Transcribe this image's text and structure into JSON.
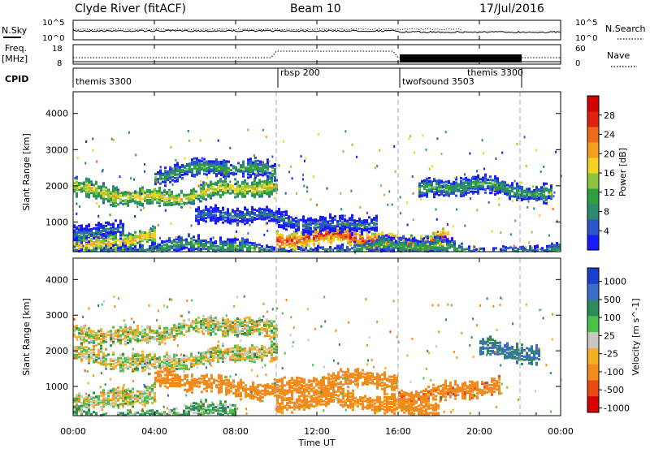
{
  "header": {
    "title": "Clyde River (fitACF)",
    "beam": "Beam 10",
    "date": "17/Jul/2016"
  },
  "nsky_panel": {
    "left_label": "N.Sky",
    "left_ticks": [
      "10^5",
      "10^0"
    ],
    "right_label": "N.Search",
    "right_ticks": [
      "10^5",
      "10^0"
    ]
  },
  "freq_panel": {
    "left_label_line1": "Freq.",
    "left_label_line2": "[MHz]",
    "left_ticks": [
      "18",
      "8"
    ],
    "right_label": "Nave",
    "right_ticks": [
      "60",
      "0"
    ]
  },
  "cpid_panel": {
    "label": "CPID",
    "segments": [
      {
        "name": "themis 3300",
        "start_hour": 0
      },
      {
        "name": "rbsp 200",
        "start_hour": 10
      },
      {
        "name": "twofsound 3503",
        "start_hour": 16
      },
      {
        "name": "themis 3300",
        "start_hour": 22
      }
    ]
  },
  "x_axis": {
    "label": "Time UT",
    "range_hours": [
      0,
      24
    ],
    "ticks": [
      "00:00",
      "04:00",
      "08:00",
      "12:00",
      "16:00",
      "20:00",
      "00:00"
    ]
  },
  "power_panel": {
    "ylabel": "Slant Range [km]",
    "yticks": [
      "1000",
      "2000",
      "3000",
      "4000"
    ],
    "colorbar_label": "Power [dB]",
    "colorbar_ticks": [
      "4",
      "8",
      "12",
      "16",
      "20",
      "24",
      "28"
    ],
    "colors": [
      "#1a1aff",
      "#2a55c8",
      "#2c8a6e",
      "#2ea043",
      "#8cc63f",
      "#f5d21f",
      "#f2a01e",
      "#ef6a1a",
      "#e02010",
      "#d50000"
    ]
  },
  "velocity_panel": {
    "ylabel": "Slant Range [km]",
    "yticks": [
      "1000",
      "2000",
      "3000",
      "4000"
    ],
    "colorbar_label": "Velocity [m s^-1]",
    "colorbar_ticks": [
      "1000",
      "500",
      "100",
      "25",
      "-25",
      "-100",
      "-500",
      "-1000"
    ],
    "colors": [
      "#1a3fd0",
      "#3a6cc8",
      "#2f8a5a",
      "#4cc14a",
      "#c8c8c0",
      "#f4b020",
      "#f28b1c",
      "#e84a10",
      "#d80000"
    ]
  },
  "chart_data": {
    "type": "heatmap",
    "x_range_hours": [
      0,
      24
    ],
    "y_range_km": [
      180,
      4600
    ],
    "mode_change_hours": [
      10,
      16,
      22
    ],
    "power_bands": [
      {
        "t_start": 0.0,
        "t_end": 10.0,
        "range_km": 1850,
        "level_db": 18
      },
      {
        "t_start": 4.0,
        "t_end": 10.0,
        "range_km": 2400,
        "level_db": 12
      },
      {
        "t_start": 0.0,
        "t_end": 2.5,
        "range_km": 900,
        "level_db": 8
      },
      {
        "t_start": 0.0,
        "t_end": 4.0,
        "range_km": 450,
        "level_db": 20
      },
      {
        "t_start": 10.0,
        "t_end": 16.5,
        "range_km": 500,
        "level_db": 26
      },
      {
        "t_start": 16.0,
        "t_end": 18.5,
        "range_km": 600,
        "level_db": 24
      },
      {
        "t_start": 17.0,
        "t_end": 23.5,
        "range_km": 1900,
        "level_db": 12
      },
      {
        "t_start": 6.0,
        "t_end": 15.0,
        "range_km": 1100,
        "level_db": 8
      },
      {
        "t_start": 0.0,
        "t_end": 24.0,
        "range_km": 250,
        "level_db": 12
      }
    ],
    "velocity_bands": [
      {
        "t_start": 0.0,
        "t_end": 10.0,
        "range_km": 1850,
        "velocity": 0
      },
      {
        "t_start": 0.0,
        "t_end": 10.0,
        "range_km": 2600,
        "velocity": 0
      },
      {
        "t_start": 0.0,
        "t_end": 4.0,
        "range_km": 800,
        "velocity": 0
      },
      {
        "t_start": 4.0,
        "t_end": 16.0,
        "range_km": 1100,
        "velocity": -300
      },
      {
        "t_start": 10.0,
        "t_end": 18.0,
        "range_km": 550,
        "velocity": -200
      },
      {
        "t_start": 16.0,
        "t_end": 21.0,
        "range_km": 900,
        "velocity": -400
      },
      {
        "t_start": 20.0,
        "t_end": 23.0,
        "range_km": 2000,
        "velocity": 500
      },
      {
        "t_start": 0.0,
        "t_end": 8.0,
        "range_km": 250,
        "velocity": 100
      }
    ]
  }
}
